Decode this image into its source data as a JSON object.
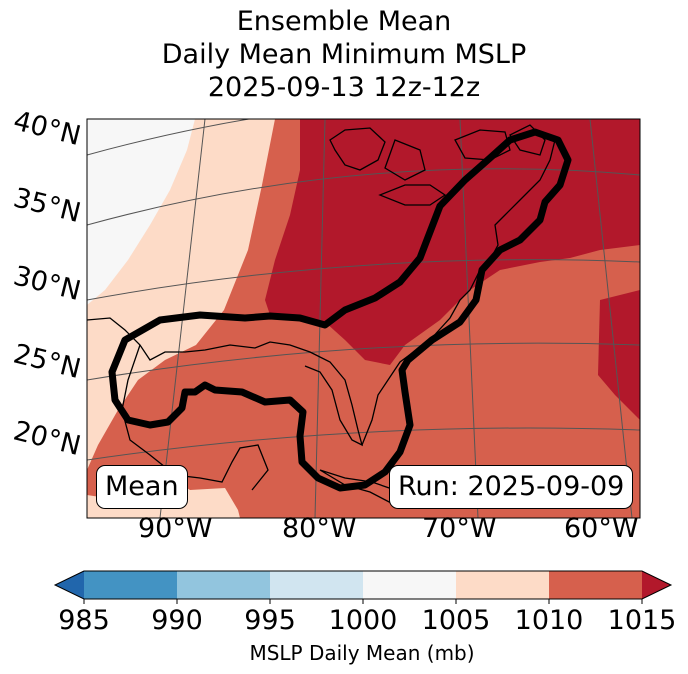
{
  "title": {
    "line1": "Ensemble Mean",
    "line2": "Daily Mean Minimum MSLP",
    "line3": "2025-09-13 12z-12z"
  },
  "map": {
    "lat_labels": [
      "40°N",
      "35°N",
      "30°N",
      "25°N",
      "20°N"
    ],
    "lon_labels": [
      "90°W",
      "80°W",
      "70°W",
      "60°W"
    ],
    "stat_label": "Mean",
    "run_label": "Run: 2025-09-09",
    "colors": {
      "c985": "#3a84bf",
      "c990": "#92c4df",
      "c995": "#d1e5f0",
      "c1000": "#f7f7f7",
      "c1005": "#fddbc7",
      "c1010": "#d6604d",
      "c1015": "#b2182b",
      "contour": "#000000",
      "coast": "#000000",
      "grid": "#555555"
    }
  },
  "colorbar": {
    "ticks": [
      "985",
      "990",
      "995",
      "1000",
      "1005",
      "1010",
      "1015"
    ],
    "label": "MSLP Daily Mean (mb)",
    "colors": [
      "#2166ac",
      "#4393c3",
      "#92c5de",
      "#d1e5f0",
      "#f7f7f7",
      "#fddbc7",
      "#d6604d",
      "#b2182b"
    ]
  }
}
